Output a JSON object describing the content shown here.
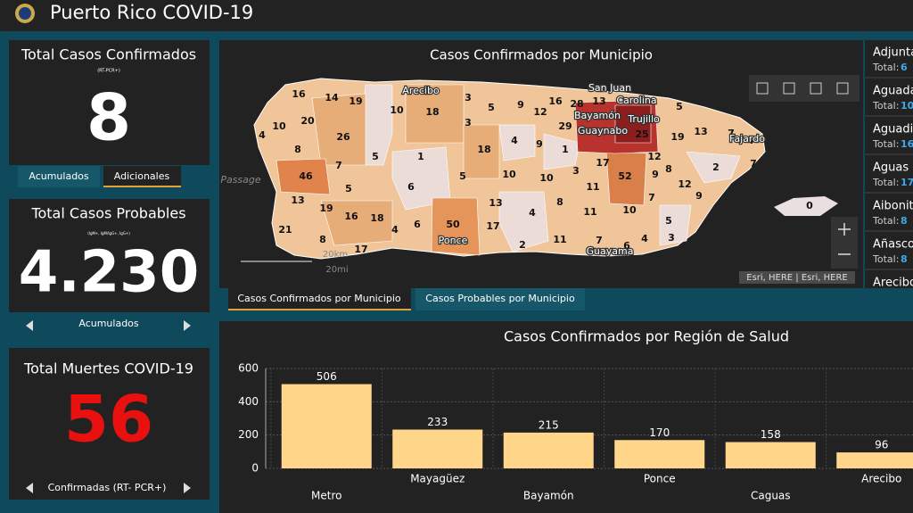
{
  "header": {
    "title": "Puerto Rico COVID-19"
  },
  "indicators": [
    {
      "title": "Total Casos Confirmados",
      "subtitle": "(RT-PCR+)",
      "value": 8,
      "tabs": [
        "Acumulados",
        "Adicionales"
      ]
    },
    {
      "title": "Total Casos Probables",
      "subtitle": "(IgM+, IgM/IgG+, IgG+)",
      "value": "4.230",
      "footer": "Acumulados"
    },
    {
      "title": "Total Muertes COVID-19",
      "value": 56,
      "footer": "Confirmadas (RT- PCR+)"
    }
  ],
  "map": {
    "title": "Casos Confirmados por Municipio",
    "labels": [
      16,
      14,
      19,
      10,
      18,
      3,
      5,
      9,
      12,
      16,
      28,
      13,
      5,
      4,
      10,
      20,
      26,
      3,
      29,
      25,
      19,
      13,
      7,
      8,
      5,
      1,
      18,
      4,
      9,
      1,
      12,
      7,
      7,
      3,
      17,
      8,
      2,
      7,
      46,
      5,
      6,
      5,
      10,
      10,
      11,
      52,
      9,
      12,
      13,
      19,
      16,
      18,
      13,
      8,
      7,
      9,
      21,
      4,
      6,
      50,
      17,
      4,
      11,
      10,
      5,
      8,
      17,
      2,
      11,
      7,
      6,
      4,
      3,
      0
    ],
    "places": [
      "Arecibo",
      "San Juan",
      "Carolina",
      "Bayamón",
      "Trujillo",
      "Guaynabo",
      "Fajardo",
      "Passage",
      "Ponce",
      "Guayama"
    ],
    "scale_labels": [
      "20km",
      "20mi"
    ],
    "attribution": "Esri, HERE | Esri, HERE",
    "tabs": [
      "Casos Confirmados por Municipio",
      "Casos Probables por Municipio"
    ]
  },
  "municipalities": {
    "total_label": "Total:",
    "items": [
      {
        "name": "Adjuntas",
        "total": 6
      },
      {
        "name": "Aguada",
        "total": 10
      },
      {
        "name": "Aguadilla",
        "total": 16
      },
      {
        "name": "Aguas Buenas",
        "total": 17
      },
      {
        "name": "Aibonito",
        "total": 8
      },
      {
        "name": "Añasco",
        "total": 8
      },
      {
        "name": "Arecibo"
      }
    ]
  },
  "chart_data": {
    "type": "bar",
    "title": "Casos Confirmados por Región de Salud",
    "categories": [
      "Metro",
      "Mayagüez",
      "Bayamón",
      "Ponce",
      "Caguas",
      "Arecibo"
    ],
    "values": [
      506,
      233,
      215,
      170,
      158,
      96
    ],
    "color": "#ffd68a",
    "ylim": [
      0,
      600
    ],
    "yticks": [
      0,
      200,
      400,
      600
    ],
    "grid": true
  }
}
